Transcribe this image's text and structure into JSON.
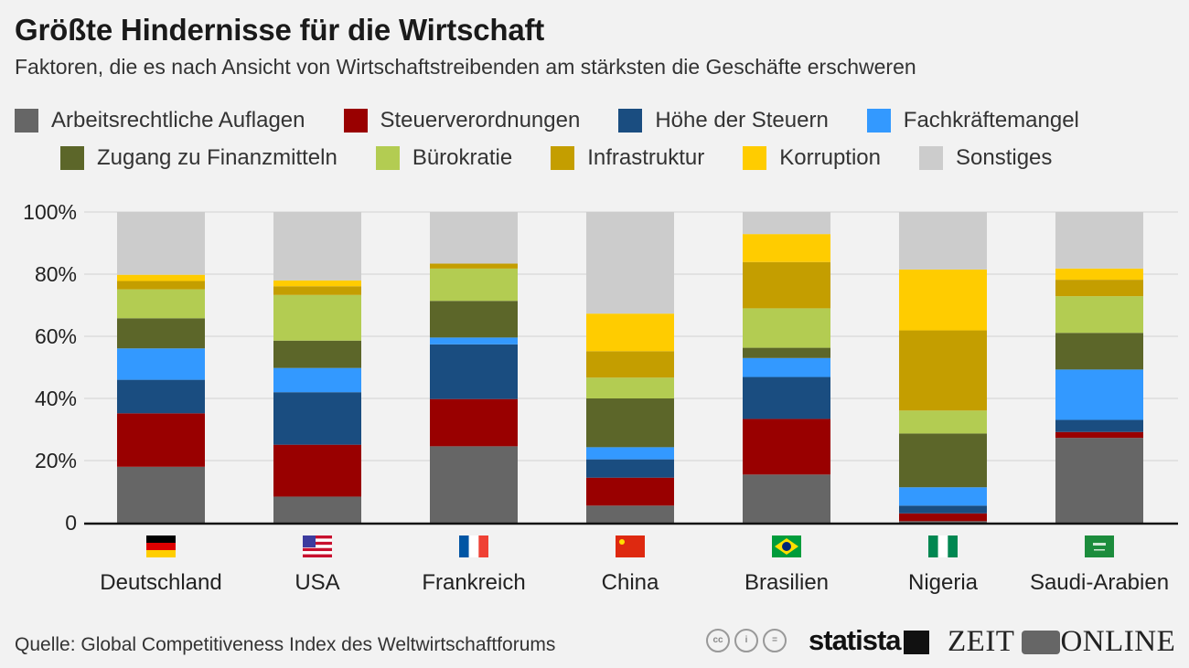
{
  "header": {
    "title": "Größte Hindernisse für die Wirtschaft",
    "subtitle": "Faktoren, die es nach Ansicht von Wirtschaftstreibenden am stärksten die Geschäfte erschweren"
  },
  "footer": {
    "source": "Quelle: Global Competitiveness Index des Weltwirtschaftforums",
    "cc_icons": [
      "cc-icon",
      "by-icon",
      "nd-icon"
    ],
    "cc_labels": [
      "cc",
      "i",
      "="
    ],
    "statista": "statista",
    "zeit_left": "ZEIT",
    "zeit_right": "ONLINE"
  },
  "chart_data": {
    "type": "bar",
    "stacked": true,
    "title": "Größte Hindernisse für die Wirtschaft",
    "subtitle": "Faktoren, die es nach Ansicht von Wirtschaftstreibenden am stärksten die Geschäfte erschweren",
    "xlabel": "",
    "ylabel": "",
    "ylim": [
      0,
      100
    ],
    "yticks": [
      "0",
      "20%",
      "40%",
      "60%",
      "80%",
      "100%"
    ],
    "ytick_values": [
      0,
      20,
      40,
      60,
      80,
      100
    ],
    "grid": true,
    "legend_position": "top",
    "categories": [
      "Deutschland",
      "USA",
      "Frankreich",
      "China",
      "Brasilien",
      "Nigeria",
      "Saudi-Arabien"
    ],
    "category_flags": [
      "flag-germany",
      "flag-usa",
      "flag-france",
      "flag-china",
      "flag-brazil",
      "flag-nigeria",
      "flag-saudi-arabia"
    ],
    "series": [
      {
        "name": "Arbeitsrechtliche Auflagen",
        "color": "#666666",
        "values": [
          18.0,
          8.4,
          24.6,
          5.5,
          15.5,
          0.5,
          27.3
        ]
      },
      {
        "name": "Steuerverordnungen",
        "color": "#990000",
        "values": [
          17.2,
          16.7,
          15.2,
          9.0,
          17.9,
          2.5,
          1.9
        ]
      },
      {
        "name": "Höhe der Steuern",
        "color": "#1a4d80",
        "values": [
          10.8,
          16.9,
          17.6,
          5.9,
          13.5,
          2.5,
          3.9
        ]
      },
      {
        "name": "Fachkräftemangel",
        "color": "#3399ff",
        "values": [
          10.1,
          7.8,
          2.2,
          3.9,
          6.1,
          5.9,
          16.2
        ]
      },
      {
        "name": "Zugang zu Finanzmitteln",
        "color": "#5c6629",
        "values": [
          9.7,
          8.8,
          11.8,
          15.7,
          3.3,
          17.3,
          11.8
        ]
      },
      {
        "name": "Bürokratie",
        "color": "#b3cc52",
        "values": [
          9.3,
          14.7,
          10.4,
          6.7,
          12.7,
          7.4,
          11.8
        ]
      },
      {
        "name": "Infrastruktur",
        "color": "#c49e00",
        "values": [
          2.7,
          2.8,
          1.6,
          8.5,
          14.9,
          25.8,
          5.3
        ]
      },
      {
        "name": "Korruption",
        "color": "#ffcc00",
        "values": [
          2.0,
          1.9,
          0.0,
          12.1,
          9.0,
          19.6,
          3.6
        ]
      },
      {
        "name": "Sonstiges",
        "color": "#cccccc",
        "values": [
          20.2,
          22.0,
          16.6,
          32.7,
          7.1,
          18.5,
          18.2
        ]
      }
    ]
  }
}
